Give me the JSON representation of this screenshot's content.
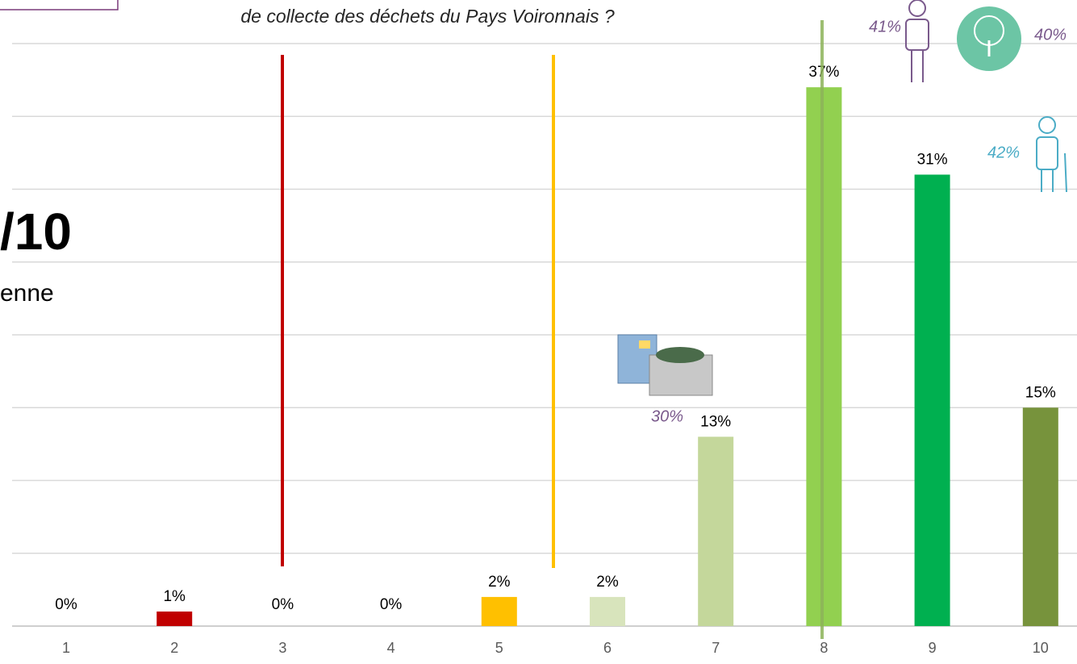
{
  "chart_data": {
    "type": "bar",
    "title": "de collecte des déchets du Pays Voironnais ?",
    "categories": [
      "1",
      "2",
      "3",
      "4",
      "5",
      "6",
      "7",
      "8",
      "9",
      "10"
    ],
    "values": [
      0,
      1,
      0,
      0,
      2,
      2,
      13,
      37,
      31,
      15
    ],
    "value_labels": [
      "0%",
      "1%",
      "0%",
      "0%",
      "2%",
      "2%",
      "13%",
      "37%",
      "31%",
      "15%"
    ],
    "colors": [
      "#c00000",
      "#c00000",
      "#c00000",
      "#ffc000",
      "#ffc000",
      "#d8e4bc",
      "#c4d79b",
      "#92d050",
      "#00b050",
      "#77933c"
    ],
    "ylim": [
      0,
      40
    ],
    "yticks": [
      0,
      5,
      10,
      15,
      20,
      25,
      30,
      35,
      40
    ],
    "grid": true,
    "annotations": [
      "/10",
      "enne",
      "41%",
      "40%",
      "42%",
      "30%"
    ]
  }
}
